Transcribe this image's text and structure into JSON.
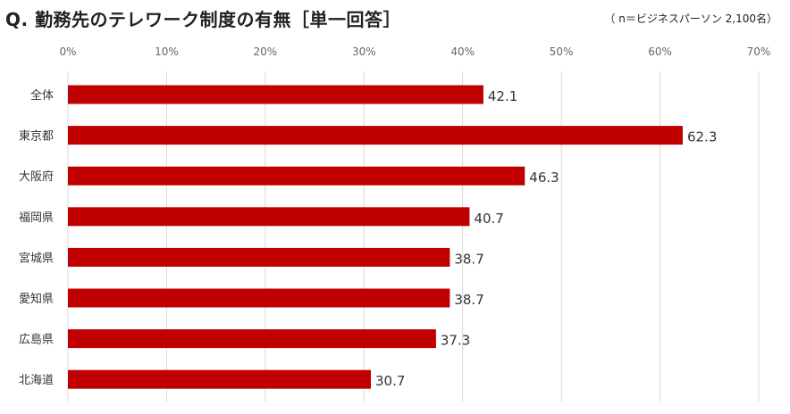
{
  "header": {
    "title": "Q. 勤務先のテレワーク制度の有無［単一回答］",
    "note": "（ n＝ビジネスパーソン 2,100名）"
  },
  "chart_data": {
    "type": "bar",
    "orientation": "horizontal",
    "categories": [
      "全体",
      "東京都",
      "大阪府",
      "福岡県",
      "宮城県",
      "愛知県",
      "広島県",
      "北海道"
    ],
    "values": [
      42.1,
      62.3,
      46.3,
      40.7,
      38.7,
      38.7,
      37.3,
      30.7
    ],
    "value_labels": [
      "42.1",
      "62.3",
      "46.3",
      "40.7",
      "38.7",
      "38.7",
      "37.3",
      "30.7"
    ],
    "xlim": [
      0,
      70
    ],
    "ticks": [
      0,
      10,
      20,
      30,
      40,
      50,
      60,
      70
    ],
    "tick_labels": [
      "0%",
      "10%",
      "20%",
      "30%",
      "40%",
      "50%",
      "60%",
      "70%"
    ],
    "tick_position": "top",
    "grid": true,
    "bar_color": "#c00000",
    "grid_color": "#d9d9d9"
  }
}
